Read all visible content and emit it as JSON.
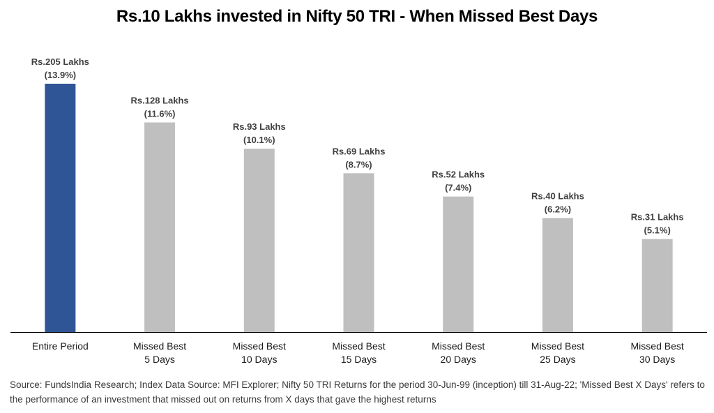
{
  "chart_data": {
    "type": "bar",
    "title": "Rs.10 Lakhs invested in Nifty 50 TRI - When Missed Best Days",
    "xlabel": "",
    "ylabel": "",
    "y_scale": "log",
    "ylim": [
      10,
      205
    ],
    "grid": false,
    "categories": [
      [
        "Entire Period"
      ],
      [
        "Missed Best",
        "5 Days"
      ],
      [
        "Missed Best",
        "10 Days"
      ],
      [
        "Missed Best",
        "15 Days"
      ],
      [
        "Missed Best",
        "20 Days"
      ],
      [
        "Missed Best",
        "25 Days"
      ],
      [
        "Missed Best",
        "30 Days"
      ]
    ],
    "values": [
      205,
      128,
      93,
      69,
      52,
      40,
      31
    ],
    "returns_pct": [
      13.9,
      11.6,
      10.1,
      8.7,
      7.4,
      6.2,
      5.1
    ],
    "data_labels": [
      [
        "Rs.205 Lakhs",
        "(13.9%)"
      ],
      [
        "Rs.128 Lakhs",
        "(11.6%)"
      ],
      [
        "Rs.93 Lakhs",
        "(10.1%)"
      ],
      [
        "Rs.69 Lakhs",
        "(8.7%)"
      ],
      [
        "Rs.52 Lakhs",
        "(7.4%)"
      ],
      [
        "Rs.40 Lakhs",
        "(6.2%)"
      ],
      [
        "Rs.31 Lakhs",
        "(5.1%)"
      ]
    ],
    "colors": [
      "#2F5597",
      "#BFBFBF",
      "#BFBFBF",
      "#BFBFBF",
      "#BFBFBF",
      "#BFBFBF",
      "#BFBFBF"
    ],
    "axis_color": "#000000"
  },
  "source_note": "Source: FundsIndia Research; Index Data Source: MFI Explorer; Nifty 50 TRI Returns for the period 30-Jun-99 (inception) till 31-Aug-22; 'Missed Best X Days' refers to the performance of an investment that missed out on returns from X days that gave the highest returns"
}
